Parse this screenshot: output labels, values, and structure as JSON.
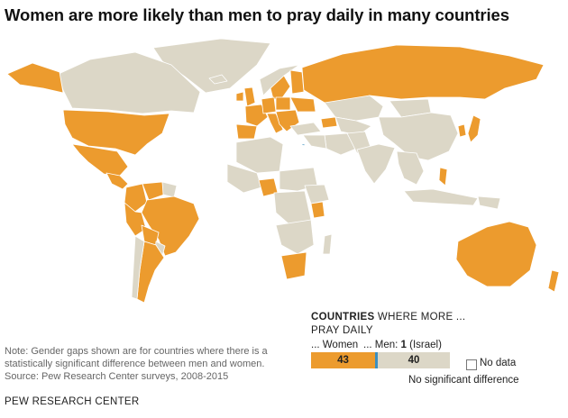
{
  "title": "Women are more likely than men to pray daily in many countries",
  "legend": {
    "heading_bold": "COUNTRIES",
    "heading_rest": " WHERE MORE ...",
    "heading_line2": "PRAY DAILY",
    "women_label": "... Women",
    "men_label_prefix": "... Men: ",
    "men_count": "1",
    "men_country": " (Israel)",
    "women_count": "43",
    "no_diff_count": "40",
    "no_data_label": "No data",
    "no_diff_label": "No significant difference"
  },
  "note": {
    "line1": "Note: Gender gaps shown are for countries where there is a",
    "line2": "statistically significant difference between men and women.",
    "line3": "Source: Pew Research Center surveys, 2008-2015"
  },
  "brand": "PEW RESEARCH CENTER",
  "colors": {
    "women": "#ec9b2e",
    "men": "#3d8fbf",
    "no_difference": "#dcd7c7",
    "no_data": "#ffffff",
    "border": "#ffffff"
  }
}
